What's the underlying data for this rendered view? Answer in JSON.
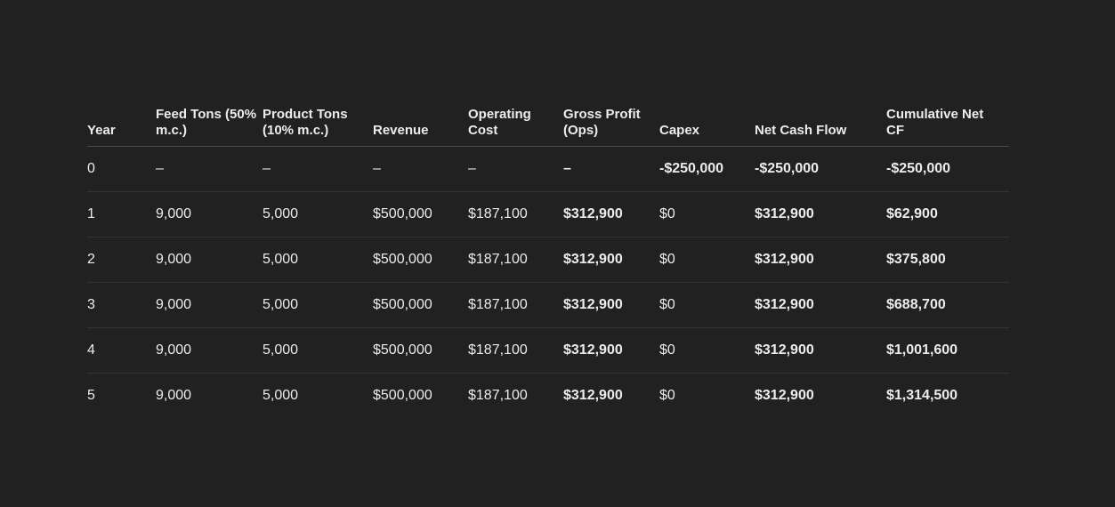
{
  "table": {
    "headers": [
      {
        "key": "year",
        "label": "Year"
      },
      {
        "key": "feed_tons",
        "label": "Feed Tons (50% m.c.)"
      },
      {
        "key": "product_tons",
        "label": "Product Tons (10% m.c.)"
      },
      {
        "key": "revenue",
        "label": "Revenue"
      },
      {
        "key": "operating_cost",
        "label": "Operating Cost"
      },
      {
        "key": "gross_profit",
        "label": "Gross Profit (Ops)"
      },
      {
        "key": "capex",
        "label": "Capex"
      },
      {
        "key": "net_cash_flow",
        "label": "Net Cash Flow"
      },
      {
        "key": "cumulative_net_cf",
        "label": "Cumulative Net CF"
      }
    ],
    "rows": [
      {
        "year": "0",
        "feed_tons": "–",
        "product_tons": "–",
        "revenue": "–",
        "operating_cost": "–",
        "gross_profit": "–",
        "capex": "-$250,000",
        "net_cash_flow": "-$250,000",
        "cumulative_net_cf": "-$250,000"
      },
      {
        "year": "1",
        "feed_tons": "9,000",
        "product_tons": "5,000",
        "revenue": "$500,000",
        "operating_cost": "$187,100",
        "gross_profit": "$312,900",
        "capex": "$0",
        "net_cash_flow": "$312,900",
        "cumulative_net_cf": "$62,900"
      },
      {
        "year": "2",
        "feed_tons": "9,000",
        "product_tons": "5,000",
        "revenue": "$500,000",
        "operating_cost": "$187,100",
        "gross_profit": "$312,900",
        "capex": "$0",
        "net_cash_flow": "$312,900",
        "cumulative_net_cf": "$375,800"
      },
      {
        "year": "3",
        "feed_tons": "9,000",
        "product_tons": "5,000",
        "revenue": "$500,000",
        "operating_cost": "$187,100",
        "gross_profit": "$312,900",
        "capex": "$0",
        "net_cash_flow": "$312,900",
        "cumulative_net_cf": "$688,700"
      },
      {
        "year": "4",
        "feed_tons": "9,000",
        "product_tons": "5,000",
        "revenue": "$500,000",
        "operating_cost": "$187,100",
        "gross_profit": "$312,900",
        "capex": "$0",
        "net_cash_flow": "$312,900",
        "cumulative_net_cf": "$1,001,600"
      },
      {
        "year": "5",
        "feed_tons": "9,000",
        "product_tons": "5,000",
        "revenue": "$500,000",
        "operating_cost": "$187,100",
        "gross_profit": "$312,900",
        "capex": "$0",
        "net_cash_flow": "$312,900",
        "cumulative_net_cf": "$1,314,500"
      }
    ]
  },
  "colors": {
    "background": "#212121",
    "text": "#ececec",
    "header_rule": "#4a4a4a",
    "row_rule": "#333333"
  }
}
